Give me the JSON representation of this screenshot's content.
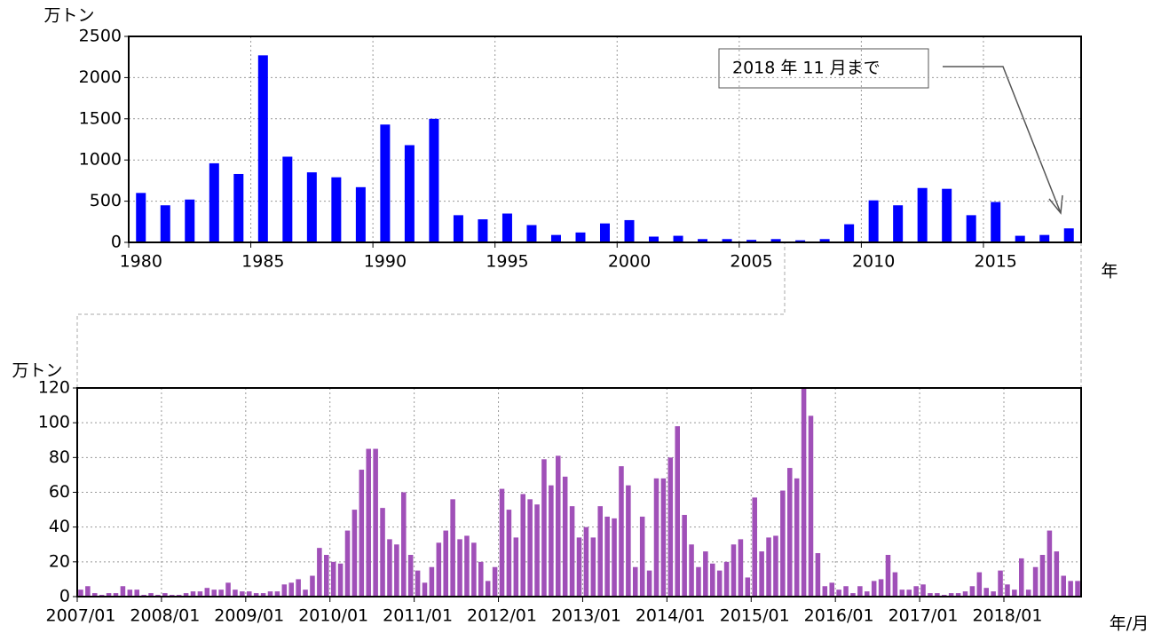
{
  "chart_data": [
    {
      "type": "bar",
      "y_label": "万トン",
      "x_label": "年",
      "annotation": "2018 年 11 月まで",
      "categories": [
        "1980",
        null,
        null,
        null,
        null,
        "1985",
        null,
        null,
        null,
        null,
        "1990",
        null,
        null,
        null,
        null,
        "1995",
        null,
        null,
        null,
        null,
        "2000",
        null,
        null,
        null,
        null,
        "2005",
        null,
        null,
        null,
        null,
        "2010",
        null,
        null,
        null,
        null,
        "2015",
        null,
        null,
        null
      ],
      "values": [
        600,
        450,
        520,
        960,
        830,
        2270,
        1040,
        850,
        790,
        670,
        1430,
        1180,
        1500,
        330,
        280,
        350,
        210,
        90,
        120,
        230,
        270,
        70,
        80,
        40,
        40,
        30,
        40,
        25,
        40,
        220,
        510,
        450,
        660,
        650,
        330,
        490,
        80,
        90,
        170
      ],
      "color": "#0000ff",
      "ylim": [
        0,
        2500
      ],
      "yticks": [
        0,
        500,
        1000,
        1500,
        2000,
        2500
      ],
      "grid": true
    },
    {
      "type": "bar",
      "y_label": "万トン",
      "x_label": "年/月",
      "categories": [
        "2007/01",
        null,
        null,
        null,
        null,
        null,
        null,
        null,
        null,
        null,
        null,
        null,
        "2008/01",
        null,
        null,
        null,
        null,
        null,
        null,
        null,
        null,
        null,
        null,
        null,
        "2009/01",
        null,
        null,
        null,
        null,
        null,
        null,
        null,
        null,
        null,
        null,
        null,
        "2010/01",
        null,
        null,
        null,
        null,
        null,
        null,
        null,
        null,
        null,
        null,
        null,
        "2011/01",
        null,
        null,
        null,
        null,
        null,
        null,
        null,
        null,
        null,
        null,
        null,
        "2012/01",
        null,
        null,
        null,
        null,
        null,
        null,
        null,
        null,
        null,
        null,
        null,
        "2013/01",
        null,
        null,
        null,
        null,
        null,
        null,
        null,
        null,
        null,
        null,
        null,
        "2014/01",
        null,
        null,
        null,
        null,
        null,
        null,
        null,
        null,
        null,
        null,
        null,
        "2015/01",
        null,
        null,
        null,
        null,
        null,
        null,
        null,
        null,
        null,
        null,
        null,
        "2016/01",
        null,
        null,
        null,
        null,
        null,
        null,
        null,
        null,
        null,
        null,
        null,
        "2017/01",
        null,
        null,
        null,
        null,
        null,
        null,
        null,
        null,
        null,
        null,
        null,
        "2018/01",
        null,
        null,
        null,
        null,
        null,
        null,
        null,
        null,
        null,
        null
      ],
      "values": [
        4,
        6,
        2,
        1,
        2,
        2,
        6,
        4,
        4,
        1,
        2,
        1,
        2,
        1,
        1,
        2,
        3,
        3,
        5,
        4,
        4,
        8,
        4,
        3,
        3,
        2,
        2,
        3,
        3,
        7,
        8,
        10,
        4,
        12,
        28,
        24,
        20,
        19,
        38,
        50,
        73,
        85,
        85,
        51,
        33,
        30,
        60,
        24,
        15,
        8,
        17,
        31,
        38,
        56,
        33,
        35,
        31,
        20,
        9,
        17,
        62,
        50,
        34,
        59,
        56,
        53,
        79,
        64,
        81,
        69,
        52,
        34,
        40,
        34,
        52,
        46,
        45,
        75,
        64,
        17,
        46,
        15,
        68,
        68,
        80,
        98,
        47,
        30,
        17,
        26,
        19,
        15,
        20,
        30,
        33,
        11,
        57,
        26,
        34,
        35,
        61,
        74,
        68,
        120,
        104,
        25,
        6,
        8,
        4,
        6,
        2,
        6,
        3,
        9,
        10,
        24,
        14,
        4,
        4,
        6,
        7,
        2,
        2,
        1,
        2,
        2,
        3,
        6,
        14,
        5,
        3,
        15,
        7,
        4,
        22,
        4,
        17,
        24,
        38,
        26,
        12,
        9,
        9
      ],
      "color": "#a050b8",
      "ylim": [
        0,
        120
      ],
      "yticks": [
        0,
        20,
        40,
        60,
        80,
        100,
        120
      ],
      "grid": true
    }
  ]
}
